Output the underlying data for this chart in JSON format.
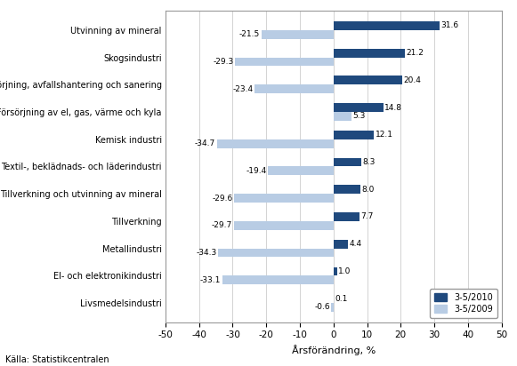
{
  "categories": [
    "Utvinning av mineral",
    "Skogsindustri",
    "Vattenförsörjning, avfallshantering och sanering",
    "Försörjning av el, gas, värme och kyla",
    "Kemisk industri",
    "Textil-, beklädnads- och läderindustri",
    "Tillverkning och utvinning av mineral",
    "Tillverkning",
    "Metallindustri",
    "El- och elektronikindustri",
    "Livsmedelsindustri"
  ],
  "values_2010": [
    31.6,
    21.2,
    20.4,
    14.8,
    12.1,
    8.3,
    8.0,
    7.7,
    4.4,
    1.0,
    0.1
  ],
  "values_2009": [
    -21.5,
    -29.3,
    -23.4,
    5.3,
    -34.7,
    -19.4,
    -29.6,
    -29.7,
    -34.3,
    -33.1,
    -0.6
  ],
  "color_2010": "#1F497D",
  "color_2009": "#B8CCE4",
  "xlabel": "Årsförändring, %",
  "legend_2010": "3-5/2010",
  "legend_2009": "3-5/2009",
  "xlim": [
    -50,
    50
  ],
  "xticks": [
    -50,
    -40,
    -30,
    -20,
    -10,
    0,
    10,
    20,
    30,
    40,
    50
  ],
  "source": "Källa: Statistikcentralen",
  "background_color": "#FFFFFF",
  "plot_bg_color": "#FFFFFF"
}
